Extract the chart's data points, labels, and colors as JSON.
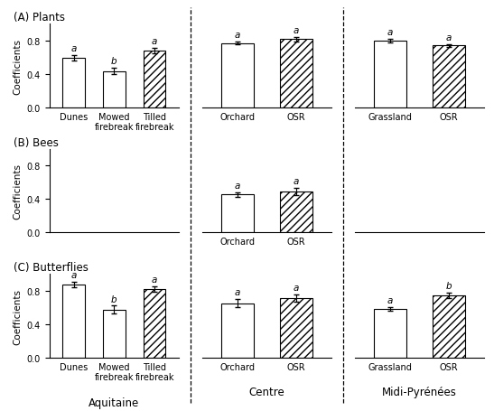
{
  "panels": {
    "A_Plants": {
      "Aquitaine": {
        "labels": [
          "Dunes",
          "Mowed\nfirebreak",
          "Tilled\nfirebreak"
        ],
        "values": [
          0.595,
          0.435,
          0.68
        ],
        "errors": [
          0.03,
          0.04,
          0.035
        ],
        "sig": [
          "a",
          "b",
          "a"
        ],
        "hatches": [
          "",
          "",
          "////"
        ]
      },
      "Centre": {
        "labels": [
          "Orchard",
          "OSR"
        ],
        "values": [
          0.77,
          0.815
        ],
        "errors": [
          0.02,
          0.025
        ],
        "sig": [
          "a",
          "a"
        ],
        "hatches": [
          "",
          "////"
        ]
      },
      "Midi-Pyrenees": {
        "labels": [
          "Grassland",
          "OSR"
        ],
        "values": [
          0.8,
          0.74
        ],
        "errors": [
          0.02,
          0.02
        ],
        "sig": [
          "a",
          "a"
        ],
        "hatches": [
          "",
          "////"
        ]
      }
    },
    "B_Bees": {
      "Aquitaine": {
        "labels": [],
        "values": [],
        "errors": [],
        "sig": [],
        "hatches": []
      },
      "Centre": {
        "labels": [
          "Orchard",
          "OSR"
        ],
        "values": [
          0.455,
          0.49
        ],
        "errors": [
          0.025,
          0.04
        ],
        "sig": [
          "a",
          "a"
        ],
        "hatches": [
          "",
          "////"
        ]
      },
      "Midi-Pyrenees": {
        "labels": [],
        "values": [],
        "errors": [],
        "sig": [],
        "hatches": []
      }
    },
    "C_Butterflies": {
      "Aquitaine": {
        "labels": [
          "Dunes",
          "Mowed\nfirebreak",
          "Tilled\nfirebreak"
        ],
        "values": [
          0.875,
          0.575,
          0.82
        ],
        "errors": [
          0.03,
          0.045,
          0.03
        ],
        "sig": [
          "a",
          "b",
          "a"
        ],
        "hatches": [
          "",
          "",
          "////"
        ]
      },
      "Centre": {
        "labels": [
          "Orchard",
          "OSR"
        ],
        "values": [
          0.65,
          0.71
        ],
        "errors": [
          0.05,
          0.045
        ],
        "sig": [
          "a",
          "a"
        ],
        "hatches": [
          "",
          "////"
        ]
      },
      "Midi-Pyrenees": {
        "labels": [
          "Grassland",
          "OSR"
        ],
        "values": [
          0.585,
          0.745
        ],
        "errors": [
          0.02,
          0.03
        ],
        "sig": [
          "a",
          "b"
        ],
        "hatches": [
          "",
          "////"
        ]
      }
    }
  },
  "region_labels": [
    "Aquitaine",
    "Centre",
    "Midi-Pyrénées"
  ],
  "row_labels": [
    "(A) Plants",
    "(B) Bees",
    "(C) Butterflies"
  ],
  "ylabel": "Coefficients",
  "ylim": [
    0.0,
    1.0
  ],
  "yticks": [
    0.0,
    0.4,
    0.8
  ],
  "bar_width": 0.55,
  "bar_color": "white",
  "edge_color": "black",
  "background_color": "white",
  "fontsize_tick": 7,
  "fontsize_title": 8.5,
  "fontsize_sig": 7.5,
  "fontsize_region": 8.5,
  "fontsize_ylabel": 7.5
}
